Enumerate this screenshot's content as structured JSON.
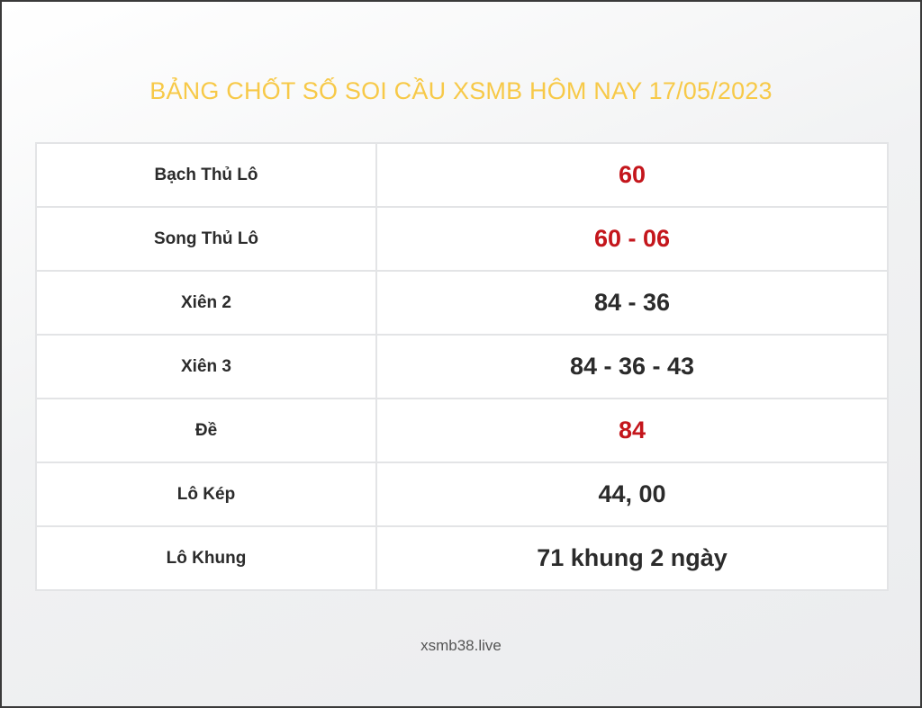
{
  "title": "BẢNG CHỐT SỐ SOI CẦU XSMB HÔM NAY 17/05/2023",
  "colors": {
    "title": "#f7c948",
    "highlight": "#c4161c",
    "text": "#2b2b2b"
  },
  "rows": [
    {
      "label": "Bạch Thủ Lô",
      "value": "60",
      "highlight": true
    },
    {
      "label": "Song Thủ Lô",
      "value": "60 - 06",
      "highlight": true
    },
    {
      "label": "Xiên 2",
      "value": "84 - 36",
      "highlight": false
    },
    {
      "label": "Xiên 3",
      "value": "84 - 36 - 43",
      "highlight": false
    },
    {
      "label": "Đề",
      "value": "84",
      "highlight": true
    },
    {
      "label": "Lô Kép",
      "value": "44, 00",
      "highlight": false
    },
    {
      "label": "Lô Khung",
      "value": "71 khung 2 ngày",
      "highlight": false
    }
  ],
  "footer": "xsmb38.live"
}
